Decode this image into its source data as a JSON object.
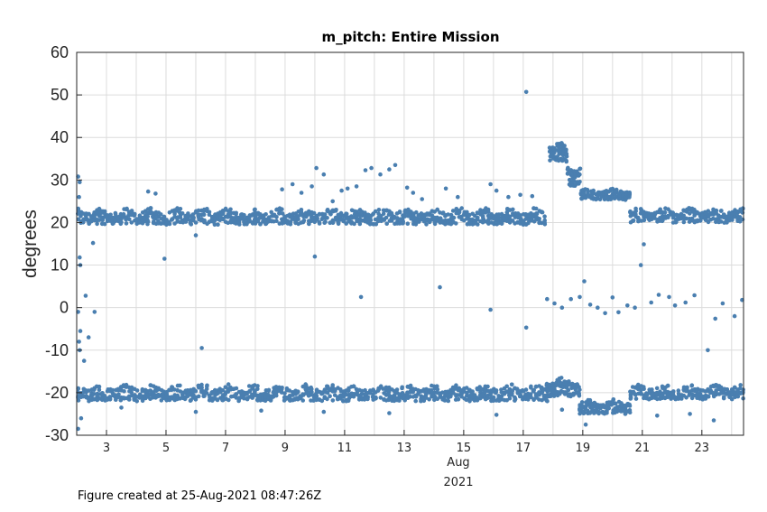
{
  "chart_data": {
    "type": "scatter",
    "title": "m_pitch: Entire Mission",
    "ylabel": "degrees",
    "xlabel_month": "Aug",
    "xlabel_year": "2021",
    "x_unit": "day of August 2021",
    "xlim": [
      2.0,
      24.4
    ],
    "ylim": [
      -30,
      60
    ],
    "yticks": [
      -30,
      -20,
      -10,
      0,
      10,
      20,
      30,
      40,
      50,
      60
    ],
    "xticks": [
      3,
      5,
      7,
      9,
      11,
      13,
      15,
      17,
      19,
      21,
      23
    ],
    "grid": true,
    "marker_color": "#4a7fb0",
    "series": [
      {
        "bands": [
          {
            "from": 2.05,
            "to": 8.0,
            "low": 19.0,
            "high": 23.5,
            "step": 0.09
          },
          {
            "from": 8.0,
            "to": 17.8,
            "low": 19.0,
            "high": 23.5,
            "step": 0.09
          },
          {
            "from": 17.9,
            "to": 18.5,
            "low": 33.5,
            "high": 39.5,
            "step": 0.05
          },
          {
            "from": 18.5,
            "to": 18.95,
            "low": 28.0,
            "high": 34.0,
            "step": 0.05
          },
          {
            "from": 18.95,
            "to": 20.6,
            "low": 25.0,
            "high": 28.0,
            "step": 0.07
          },
          {
            "from": 20.6,
            "to": 24.4,
            "low": 19.5,
            "high": 23.5,
            "step": 0.09
          },
          {
            "from": 2.05,
            "to": 17.8,
            "low": -22.5,
            "high": -18.0,
            "step": 0.09
          },
          {
            "from": 17.8,
            "to": 18.9,
            "low": -21.5,
            "high": -16.5,
            "step": 0.06
          },
          {
            "from": 18.9,
            "to": 20.6,
            "low": -25.5,
            "high": -21.5,
            "step": 0.07
          },
          {
            "from": 20.6,
            "to": 24.4,
            "low": -22.0,
            "high": -18.0,
            "step": 0.09
          }
        ],
        "outliers": [
          [
            2.05,
            30.8
          ],
          [
            2.1,
            29.5
          ],
          [
            2.08,
            26.0
          ],
          [
            2.1,
            11.8
          ],
          [
            2.12,
            10.0
          ],
          [
            2.3,
            2.8
          ],
          [
            2.05,
            -1.0
          ],
          [
            2.12,
            -5.5
          ],
          [
            2.08,
            -8.0
          ],
          [
            2.1,
            -10.0
          ],
          [
            2.25,
            -12.5
          ],
          [
            2.4,
            -7.0
          ],
          [
            2.6,
            -1.0
          ],
          [
            2.55,
            15.2
          ],
          [
            2.05,
            -28.5
          ],
          [
            2.15,
            -26.0
          ],
          [
            4.4,
            27.3
          ],
          [
            4.65,
            26.8
          ],
          [
            4.95,
            11.5
          ],
          [
            6.2,
            -9.5
          ],
          [
            6.0,
            17.0
          ],
          [
            8.9,
            27.8
          ],
          [
            9.25,
            29.0
          ],
          [
            9.55,
            27.0
          ],
          [
            9.9,
            28.5
          ],
          [
            10.05,
            32.8
          ],
          [
            10.3,
            31.3
          ],
          [
            10.0,
            12.0
          ],
          [
            10.6,
            25.0
          ],
          [
            10.9,
            27.5
          ],
          [
            11.1,
            28.0
          ],
          [
            11.4,
            28.5
          ],
          [
            11.55,
            2.5
          ],
          [
            11.7,
            32.3
          ],
          [
            11.9,
            32.8
          ],
          [
            12.2,
            31.3
          ],
          [
            12.5,
            32.5
          ],
          [
            12.7,
            33.5
          ],
          [
            13.1,
            28.2
          ],
          [
            13.3,
            27.0
          ],
          [
            13.6,
            25.5
          ],
          [
            14.2,
            4.8
          ],
          [
            14.4,
            28.0
          ],
          [
            14.8,
            26.0
          ],
          [
            15.9,
            29.0
          ],
          [
            15.9,
            -0.5
          ],
          [
            16.1,
            27.5
          ],
          [
            16.5,
            26.0
          ],
          [
            16.9,
            26.5
          ],
          [
            17.1,
            50.7
          ],
          [
            17.1,
            -4.7
          ],
          [
            17.3,
            26.2
          ],
          [
            17.8,
            2.0
          ],
          [
            18.05,
            1.0
          ],
          [
            18.3,
            0.0
          ],
          [
            18.6,
            2.0
          ],
          [
            18.9,
            2.5
          ],
          [
            19.05,
            6.2
          ],
          [
            19.25,
            0.7
          ],
          [
            19.5,
            0.0
          ],
          [
            19.75,
            -1.3
          ],
          [
            20.0,
            2.4
          ],
          [
            20.2,
            -1.1
          ],
          [
            20.5,
            0.5
          ],
          [
            20.75,
            0.0
          ],
          [
            20.95,
            10.0
          ],
          [
            21.05,
            14.9
          ],
          [
            21.3,
            1.2
          ],
          [
            21.55,
            3.0
          ],
          [
            21.9,
            2.5
          ],
          [
            22.1,
            0.5
          ],
          [
            22.45,
            1.2
          ],
          [
            22.75,
            2.9
          ],
          [
            23.2,
            -10.0
          ],
          [
            23.45,
            -2.6
          ],
          [
            23.7,
            1.0
          ],
          [
            24.1,
            -2.0
          ],
          [
            24.35,
            1.8
          ],
          [
            16.1,
            -25.2
          ],
          [
            18.3,
            -24.0
          ],
          [
            19.1,
            -27.5
          ],
          [
            21.5,
            -25.4
          ],
          [
            22.6,
            -25.0
          ],
          [
            23.4,
            -26.5
          ],
          [
            12.5,
            -24.8
          ],
          [
            10.3,
            -24.5
          ],
          [
            6.0,
            -24.5
          ],
          [
            8.2,
            -24.2
          ],
          [
            3.5,
            -23.5
          ]
        ]
      }
    ]
  },
  "footer": {
    "text": "Figure created at 25-Aug-2021 08:47:26Z"
  }
}
